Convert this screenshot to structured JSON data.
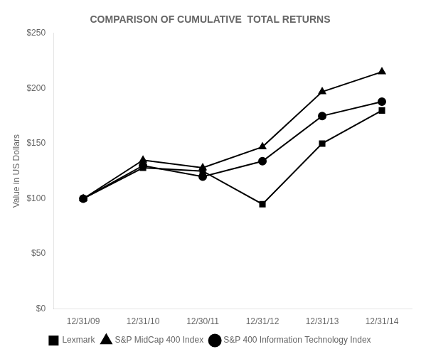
{
  "chart_data": {
    "type": "line",
    "title": "COMPARISON OF CUMULATIVE  TOTAL RETURNS",
    "y_label": "Value in US Dollars",
    "categories": [
      "12/31/09",
      "12/31/10",
      "12/30/11",
      "12/31/12",
      "12/31/13",
      "12/31/14"
    ],
    "series": [
      {
        "name": "Lexmark",
        "color": "#000000",
        "marker": "square",
        "values": [
          100,
          128,
          125,
          95,
          150,
          180
        ]
      },
      {
        "name": "S&P MidCap 400 Index",
        "color": "#000000",
        "marker": "triangle",
        "values": [
          100,
          135,
          128,
          147,
          197,
          215
        ]
      },
      {
        "name": "S&P 400 Information Technology Index",
        "color": "#000000",
        "marker": "circle",
        "values": [
          100,
          130,
          120,
          134,
          175,
          188
        ]
      }
    ],
    "ylim": [
      0,
      250
    ],
    "yticks": [
      {
        "value": 0,
        "label": "$0"
      },
      {
        "value": 50,
        "label": "$50"
      },
      {
        "value": 100,
        "label": "$100"
      },
      {
        "value": 150,
        "label": "$150"
      },
      {
        "value": 200,
        "label": "$200"
      },
      {
        "value": 250,
        "label": "$250"
      }
    ],
    "grid": false,
    "legend": "bottom"
  }
}
